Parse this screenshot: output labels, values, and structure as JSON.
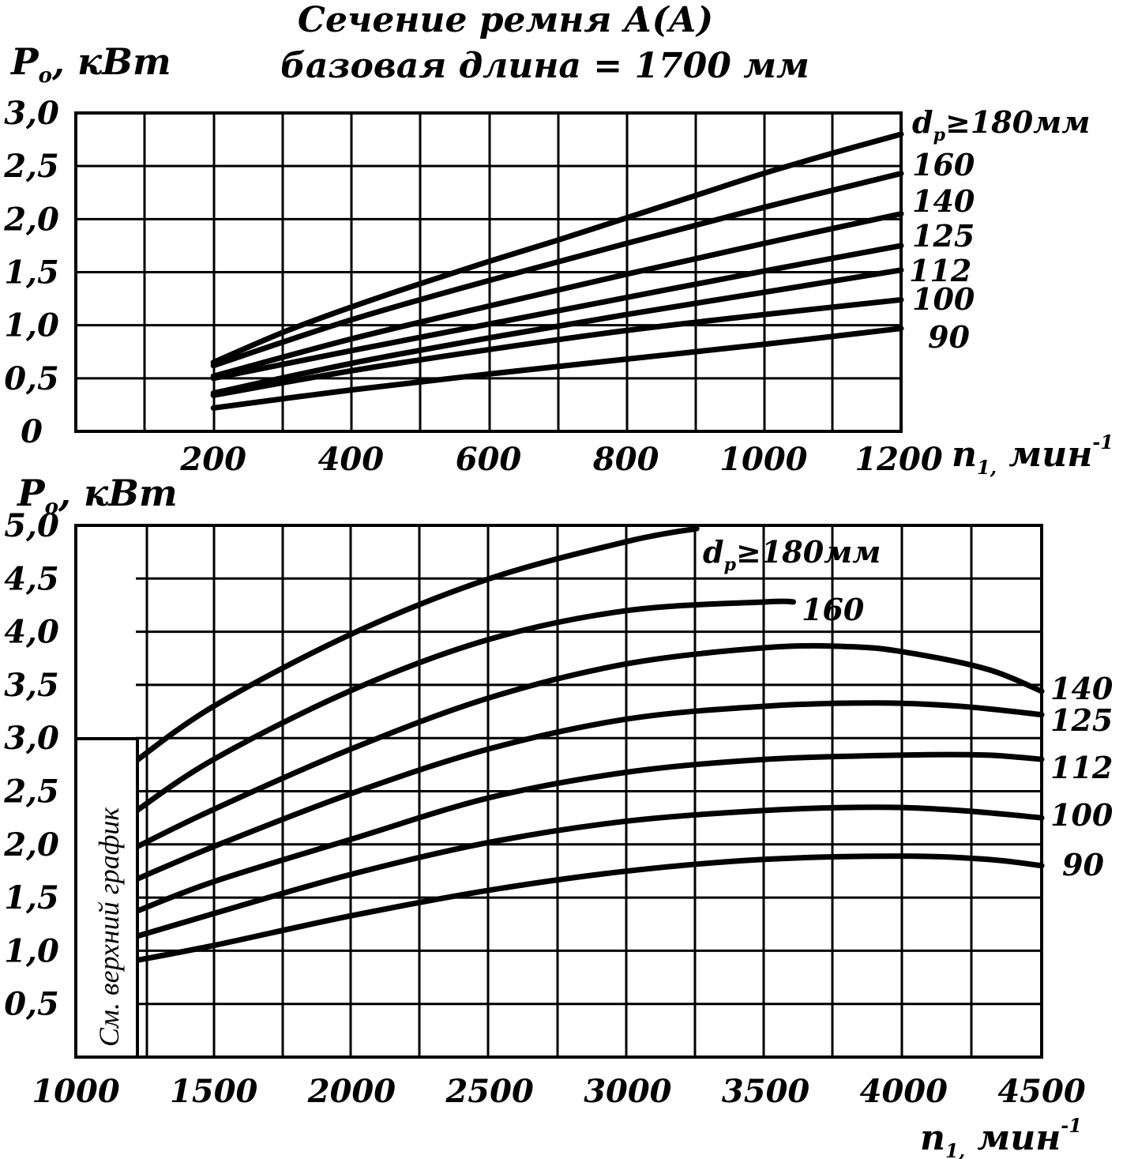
{
  "header": {
    "title_line1": "Сечение ремня А(А)",
    "title_line2": "базовая длина = 1700 мм"
  },
  "side_note": "См. верхний график",
  "chart_data": [
    {
      "type": "line",
      "ylabel_main": "P",
      "ylabel_sub": "o",
      "ylabel_unit": ", кВт",
      "xlabel_main": "n",
      "xlabel_sub": "1,",
      "xlabel_unit": " мин",
      "xlabel_sup": "-1",
      "xlim": [
        0,
        1200
      ],
      "ylim": [
        0,
        3.0
      ],
      "x_tick_labels": [
        "200",
        "400",
        "600",
        "800",
        "1000",
        "1200"
      ],
      "x_tick_values": [
        200,
        400,
        600,
        800,
        1000,
        1200
      ],
      "y_tick_labels": [
        "0",
        "0,5",
        "1,0",
        "1,5",
        "2,0",
        "2,5",
        "3,0"
      ],
      "y_tick_values": [
        0,
        0.5,
        1.0,
        1.5,
        2.0,
        2.5,
        3.0
      ],
      "grid": true,
      "series": [
        {
          "name": "dp≥180мм",
          "label_prefix": "d",
          "label_sub": "р",
          "label_rest": "≥180мм",
          "x": [
            200,
            300,
            400,
            500,
            600,
            700,
            800,
            900,
            1000,
            1100,
            1200
          ],
          "y": [
            0.65,
            0.93,
            1.17,
            1.39,
            1.6,
            1.8,
            2.01,
            2.22,
            2.43,
            2.62,
            2.8
          ]
        },
        {
          "name": "160",
          "label_prefix": "160",
          "label_sub": "",
          "label_rest": "",
          "x": [
            200,
            400,
            600,
            800,
            1000,
            1200
          ],
          "y": [
            0.62,
            1.05,
            1.42,
            1.77,
            2.11,
            2.43
          ]
        },
        {
          "name": "140",
          "label_prefix": "140",
          "label_sub": "",
          "label_rest": "",
          "x": [
            200,
            400,
            600,
            800,
            1000,
            1200
          ],
          "y": [
            0.52,
            0.87,
            1.18,
            1.48,
            1.77,
            2.05
          ]
        },
        {
          "name": "125",
          "label_prefix": "125",
          "label_sub": "",
          "label_rest": "",
          "x": [
            200,
            400,
            600,
            800,
            1000,
            1200
          ],
          "y": [
            0.5,
            0.76,
            1.01,
            1.26,
            1.51,
            1.75
          ]
        },
        {
          "name": "112",
          "label_prefix": "112",
          "label_sub": "",
          "label_rest": "",
          "x": [
            200,
            400,
            600,
            800,
            1000,
            1200
          ],
          "y": [
            0.36,
            0.64,
            0.88,
            1.1,
            1.31,
            1.52
          ]
        },
        {
          "name": "100",
          "label_prefix": "100",
          "label_sub": "",
          "label_rest": "",
          "x": [
            200,
            400,
            600,
            800,
            1000,
            1200
          ],
          "y": [
            0.34,
            0.57,
            0.77,
            0.95,
            1.1,
            1.24
          ]
        },
        {
          "name": "90",
          "label_prefix": "90",
          "label_sub": "",
          "label_rest": "",
          "x": [
            200,
            400,
            600,
            800,
            1000,
            1200
          ],
          "y": [
            0.22,
            0.39,
            0.54,
            0.68,
            0.82,
            0.97
          ]
        }
      ]
    },
    {
      "type": "line",
      "ylabel_main": "P",
      "ylabel_sub": "o",
      "ylabel_unit": ", кВт",
      "xlabel_main": "n",
      "xlabel_sub": "1,",
      "xlabel_unit": " мин",
      "xlabel_sup": "-1",
      "xlim": [
        1000,
        4500
      ],
      "ylim": [
        0,
        5.0
      ],
      "x_tick_labels": [
        "1000",
        "1500",
        "2000",
        "2500",
        "3000",
        "3500",
        "4000",
        "4500"
      ],
      "x_tick_values": [
        1000,
        1500,
        2000,
        2500,
        3000,
        3500,
        4000,
        4500
      ],
      "y_tick_labels": [
        "0,5",
        "1,0",
        "1,5",
        "2,0",
        "2,5",
        "3,0",
        "3,5",
        "4,0",
        "4,5",
        "5,0"
      ],
      "y_tick_values": [
        0.5,
        1.0,
        1.5,
        2.0,
        2.5,
        3.0,
        3.5,
        4.0,
        4.5,
        5.0
      ],
      "grid": true,
      "series": [
        {
          "name": "dp≥180мм",
          "label_prefix": "d",
          "label_sub": "р",
          "label_rest": "≥180мм",
          "x": [
            1200,
            1500,
            2000,
            2500,
            3000,
            3250
          ],
          "y": [
            2.75,
            3.3,
            3.98,
            4.5,
            4.85,
            4.97
          ]
        },
        {
          "name": "160",
          "label_prefix": "160",
          "label_sub": "",
          "label_rest": "",
          "x": [
            1200,
            1500,
            2000,
            2500,
            3000,
            3500,
            3600
          ],
          "y": [
            2.28,
            2.8,
            3.45,
            3.93,
            4.2,
            4.28,
            4.28
          ]
        },
        {
          "name": "140",
          "label_prefix": "140",
          "label_sub": "",
          "label_rest": "",
          "x": [
            1200,
            1500,
            2000,
            2500,
            3000,
            3500,
            3800,
            4000,
            4300,
            4500
          ],
          "y": [
            1.95,
            2.33,
            2.9,
            3.38,
            3.7,
            3.85,
            3.86,
            3.81,
            3.65,
            3.44
          ]
        },
        {
          "name": "125",
          "label_prefix": "125",
          "label_sub": "",
          "label_rest": "",
          "x": [
            1200,
            1500,
            2000,
            2500,
            3000,
            3500,
            3900,
            4200,
            4500
          ],
          "y": [
            1.65,
            1.98,
            2.48,
            2.9,
            3.18,
            3.3,
            3.33,
            3.3,
            3.22
          ]
        },
        {
          "name": "112",
          "label_prefix": "112",
          "label_sub": "",
          "label_rest": "",
          "x": [
            1200,
            1500,
            2000,
            2500,
            3000,
            3500,
            4000,
            4300,
            4500
          ],
          "y": [
            1.35,
            1.65,
            2.05,
            2.44,
            2.68,
            2.8,
            2.84,
            2.84,
            2.8
          ]
        },
        {
          "name": "100",
          "label_prefix": "100",
          "label_sub": "",
          "label_rest": "",
          "x": [
            1200,
            1500,
            2000,
            2500,
            3000,
            3500,
            3900,
            4200,
            4500
          ],
          "y": [
            1.12,
            1.35,
            1.72,
            2.02,
            2.22,
            2.32,
            2.35,
            2.32,
            2.25
          ]
        },
        {
          "name": "90",
          "label_prefix": "90",
          "label_sub": "",
          "label_rest": "",
          "x": [
            1200,
            1500,
            2000,
            2500,
            3000,
            3500,
            4000,
            4300,
            4500
          ],
          "y": [
            0.9,
            1.05,
            1.33,
            1.57,
            1.75,
            1.86,
            1.89,
            1.86,
            1.8
          ]
        }
      ]
    }
  ]
}
